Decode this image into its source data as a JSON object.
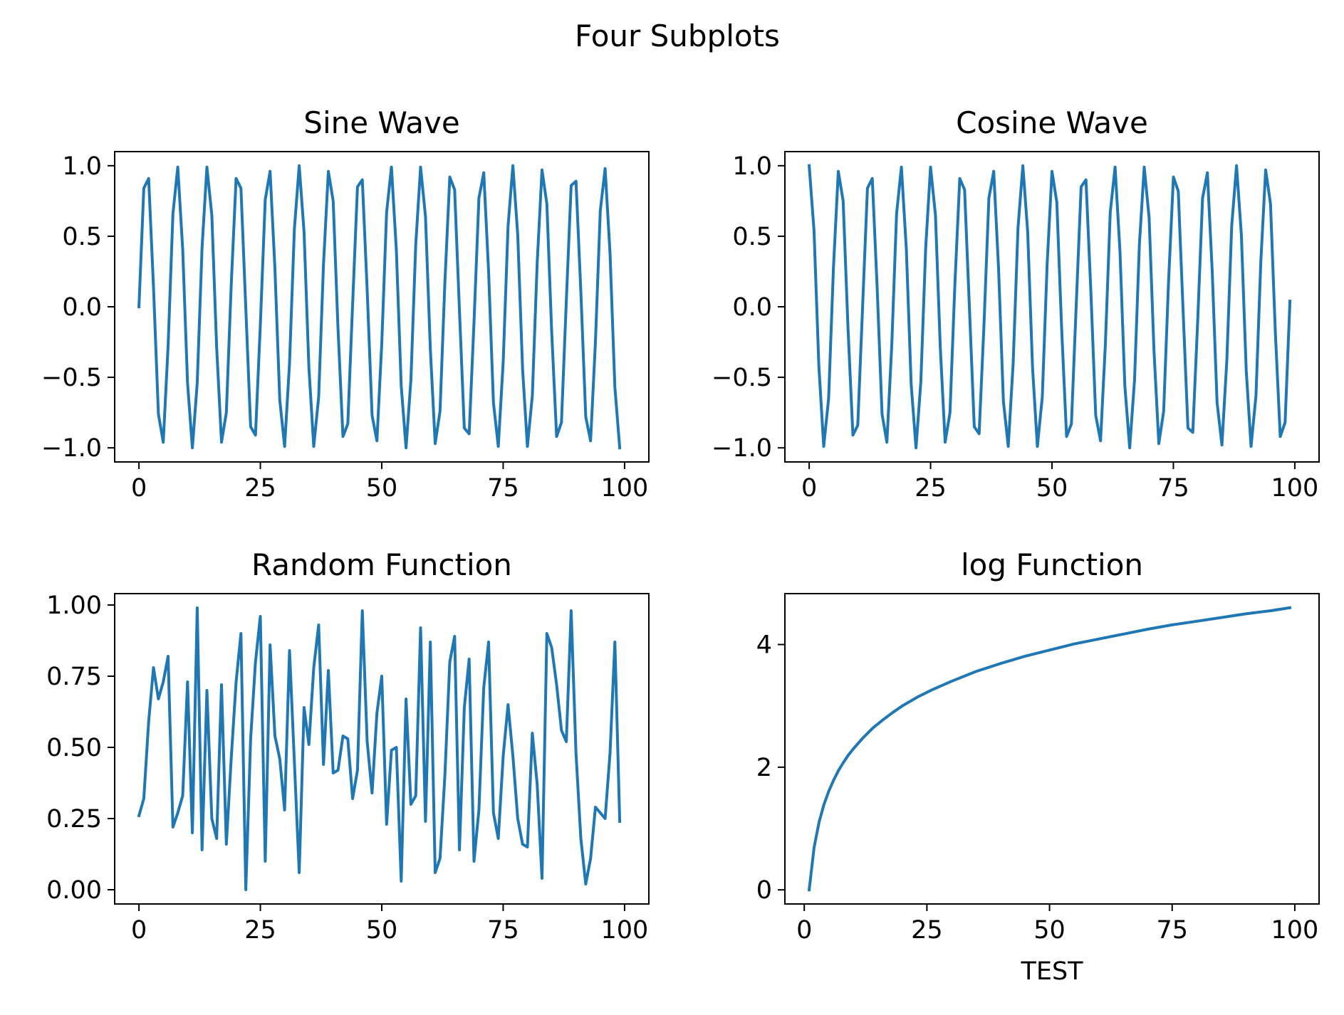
{
  "figure": {
    "suptitle": "Four Subplots"
  },
  "chart_data": [
    {
      "type": "line",
      "title": "Sine Wave",
      "xlabel": "",
      "ylabel": "",
      "xlim": [
        -5,
        105
      ],
      "ylim": [
        -1.1,
        1.1
      ],
      "xticks": [
        0,
        25,
        50,
        75,
        100
      ],
      "xtick_labels": [
        "0",
        "25",
        "50",
        "75",
        "100"
      ],
      "yticks": [
        1.0,
        0.5,
        0.0,
        -0.5,
        -1.0
      ],
      "ytick_labels": [
        "1.0",
        "0.5",
        "0.0",
        "−0.5",
        "−1.0"
      ],
      "grid": false,
      "series": [
        {
          "color": "#1f77b4",
          "x": [
            0,
            1,
            2,
            3,
            4,
            5,
            6,
            7,
            8,
            9,
            10,
            11,
            12,
            13,
            14,
            15,
            16,
            17,
            18,
            19,
            20,
            21,
            22,
            23,
            24,
            25,
            26,
            27,
            28,
            29,
            30,
            31,
            32,
            33,
            34,
            35,
            36,
            37,
            38,
            39,
            40,
            41,
            42,
            43,
            44,
            45,
            46,
            47,
            48,
            49,
            50,
            51,
            52,
            53,
            54,
            55,
            56,
            57,
            58,
            59,
            60,
            61,
            62,
            63,
            64,
            65,
            66,
            67,
            68,
            69,
            70,
            71,
            72,
            73,
            74,
            75,
            76,
            77,
            78,
            79,
            80,
            81,
            82,
            83,
            84,
            85,
            86,
            87,
            88,
            89,
            90,
            91,
            92,
            93,
            94,
            95,
            96,
            97,
            98,
            99
          ],
          "y": [
            0.0,
            0.84,
            0.91,
            0.14,
            -0.76,
            -0.96,
            -0.28,
            0.66,
            0.99,
            0.41,
            -0.54,
            -1.0,
            -0.54,
            0.42,
            0.99,
            0.65,
            -0.29,
            -0.96,
            -0.75,
            0.15,
            0.91,
            0.84,
            -0.01,
            -0.85,
            -0.91,
            -0.13,
            0.76,
            0.96,
            0.27,
            -0.66,
            -0.99,
            -0.4,
            0.55,
            1.0,
            0.53,
            -0.43,
            -0.99,
            -0.64,
            0.3,
            0.96,
            0.75,
            -0.16,
            -0.92,
            -0.83,
            0.02,
            0.85,
            0.9,
            0.12,
            -0.77,
            -0.95,
            -0.26,
            0.67,
            0.99,
            0.4,
            -0.56,
            -1.0,
            -0.52,
            0.44,
            0.99,
            0.64,
            -0.3,
            -0.97,
            -0.74,
            0.17,
            0.92,
            0.83,
            -0.03,
            -0.86,
            -0.9,
            -0.11,
            0.77,
            0.95,
            0.25,
            -0.68,
            -0.99,
            -0.39,
            0.57,
            1.0,
            0.51,
            -0.44,
            -0.99,
            -0.63,
            0.31,
            0.97,
            0.73,
            -0.18,
            -0.92,
            -0.82,
            0.04,
            0.86,
            0.89,
            0.11,
            -0.78,
            -0.95,
            -0.25,
            0.68,
            0.98,
            0.38,
            -0.57,
            -1.0
          ]
        }
      ]
    },
    {
      "type": "line",
      "title": "Cosine Wave",
      "xlabel": "",
      "ylabel": "",
      "xlim": [
        -5,
        105
      ],
      "ylim": [
        -1.1,
        1.1
      ],
      "xticks": [
        0,
        25,
        50,
        75,
        100
      ],
      "xtick_labels": [
        "0",
        "25",
        "50",
        "75",
        "100"
      ],
      "yticks": [
        1.0,
        0.5,
        0.0,
        -0.5,
        -1.0
      ],
      "ytick_labels": [
        "1.0",
        "0.5",
        "0.0",
        "−0.5",
        "−1.0"
      ],
      "grid": false,
      "series": [
        {
          "color": "#1f77b4",
          "x": [
            0,
            1,
            2,
            3,
            4,
            5,
            6,
            7,
            8,
            9,
            10,
            11,
            12,
            13,
            14,
            15,
            16,
            17,
            18,
            19,
            20,
            21,
            22,
            23,
            24,
            25,
            26,
            27,
            28,
            29,
            30,
            31,
            32,
            33,
            34,
            35,
            36,
            37,
            38,
            39,
            40,
            41,
            42,
            43,
            44,
            45,
            46,
            47,
            48,
            49,
            50,
            51,
            52,
            53,
            54,
            55,
            56,
            57,
            58,
            59,
            60,
            61,
            62,
            63,
            64,
            65,
            66,
            67,
            68,
            69,
            70,
            71,
            72,
            73,
            74,
            75,
            76,
            77,
            78,
            79,
            80,
            81,
            82,
            83,
            84,
            85,
            86,
            87,
            88,
            89,
            90,
            91,
            92,
            93,
            94,
            95,
            96,
            97,
            98,
            99
          ],
          "y": [
            1.0,
            0.54,
            -0.42,
            -0.99,
            -0.65,
            0.28,
            0.96,
            0.75,
            -0.15,
            -0.91,
            -0.84,
            0.0,
            0.84,
            0.91,
            0.14,
            -0.76,
            -0.96,
            -0.28,
            0.66,
            0.99,
            0.41,
            -0.55,
            -1.0,
            -0.53,
            0.42,
            0.99,
            0.65,
            -0.29,
            -0.96,
            -0.75,
            0.15,
            0.91,
            0.83,
            -0.01,
            -0.85,
            -0.9,
            -0.13,
            0.77,
            0.96,
            0.27,
            -0.67,
            -0.99,
            -0.4,
            0.56,
            1.0,
            0.53,
            -0.43,
            -0.99,
            -0.64,
            0.3,
            0.96,
            0.74,
            -0.16,
            -0.92,
            -0.83,
            0.02,
            0.85,
            0.9,
            0.12,
            -0.77,
            -0.95,
            -0.26,
            0.67,
            0.99,
            0.39,
            -0.56,
            -1.0,
            -0.52,
            0.44,
            0.99,
            0.63,
            -0.31,
            -0.97,
            -0.74,
            0.17,
            0.92,
            0.82,
            -0.03,
            -0.86,
            -0.89,
            -0.11,
            0.77,
            0.95,
            0.25,
            -0.68,
            -0.98,
            -0.38,
            0.57,
            1.0,
            0.51,
            -0.45,
            -0.99,
            -0.63,
            0.32,
            0.97,
            0.73,
            -0.18,
            -0.92,
            -0.82,
            0.04
          ]
        }
      ]
    },
    {
      "type": "line",
      "title": "Random Function",
      "xlabel": "",
      "ylabel": "",
      "xlim": [
        -5,
        105
      ],
      "ylim": [
        -0.05,
        1.04
      ],
      "xticks": [
        0,
        25,
        50,
        75,
        100
      ],
      "xtick_labels": [
        "0",
        "25",
        "50",
        "75",
        "100"
      ],
      "yticks": [
        1.0,
        0.75,
        0.5,
        0.25,
        0.0
      ],
      "ytick_labels": [
        "1.00",
        "0.75",
        "0.50",
        "0.25",
        "0.00"
      ],
      "grid": false,
      "series": [
        {
          "color": "#1f77b4",
          "x": [
            0,
            1,
            2,
            3,
            4,
            5,
            6,
            7,
            8,
            9,
            10,
            11,
            12,
            13,
            14,
            15,
            16,
            17,
            18,
            19,
            20,
            21,
            22,
            23,
            24,
            25,
            26,
            27,
            28,
            29,
            30,
            31,
            32,
            33,
            34,
            35,
            36,
            37,
            38,
            39,
            40,
            41,
            42,
            43,
            44,
            45,
            46,
            47,
            48,
            49,
            50,
            51,
            52,
            53,
            54,
            55,
            56,
            57,
            58,
            59,
            60,
            61,
            62,
            63,
            64,
            65,
            66,
            67,
            68,
            69,
            70,
            71,
            72,
            73,
            74,
            75,
            76,
            77,
            78,
            79,
            80,
            81,
            82,
            83,
            84,
            85,
            86,
            87,
            88,
            89,
            90,
            91,
            92,
            93,
            94,
            95,
            96,
            97,
            98,
            99
          ],
          "y": [
            0.26,
            0.32,
            0.59,
            0.78,
            0.67,
            0.73,
            0.82,
            0.22,
            0.27,
            0.33,
            0.73,
            0.2,
            0.99,
            0.14,
            0.7,
            0.25,
            0.18,
            0.72,
            0.16,
            0.46,
            0.73,
            0.9,
            0.0,
            0.53,
            0.8,
            0.96,
            0.1,
            0.86,
            0.54,
            0.46,
            0.28,
            0.84,
            0.45,
            0.06,
            0.64,
            0.51,
            0.78,
            0.93,
            0.44,
            0.77,
            0.41,
            0.42,
            0.54,
            0.53,
            0.32,
            0.42,
            0.98,
            0.52,
            0.34,
            0.62,
            0.75,
            0.23,
            0.49,
            0.5,
            0.03,
            0.67,
            0.3,
            0.33,
            0.92,
            0.24,
            0.87,
            0.06,
            0.11,
            0.4,
            0.8,
            0.89,
            0.14,
            0.64,
            0.81,
            0.1,
            0.28,
            0.71,
            0.87,
            0.27,
            0.18,
            0.47,
            0.65,
            0.47,
            0.25,
            0.16,
            0.15,
            0.55,
            0.37,
            0.04,
            0.9,
            0.85,
            0.72,
            0.56,
            0.52,
            0.98,
            0.48,
            0.18,
            0.02,
            0.11,
            0.29,
            0.27,
            0.25,
            0.48,
            0.87,
            0.24
          ]
        }
      ]
    },
    {
      "type": "line",
      "title": "log Function",
      "xlabel": "TEST",
      "ylabel": "",
      "xlim": [
        -3.95,
        104.95
      ],
      "ylim": [
        -0.23,
        4.83
      ],
      "xticks": [
        0,
        25,
        50,
        75,
        100
      ],
      "xtick_labels": [
        "0",
        "25",
        "50",
        "75",
        "100"
      ],
      "yticks": [
        4,
        2,
        0
      ],
      "ytick_labels": [
        "4",
        "2",
        "0"
      ],
      "grid": false,
      "series": [
        {
          "color": "#1f77b4",
          "x": [
            1,
            2,
            3,
            4,
            5,
            6,
            7,
            8,
            9,
            10,
            12,
            14,
            16,
            18,
            20,
            23,
            26,
            30,
            35,
            40,
            45,
            50,
            55,
            60,
            65,
            70,
            75,
            80,
            85,
            90,
            95,
            99
          ],
          "y": [
            0.0,
            0.69,
            1.1,
            1.39,
            1.61,
            1.79,
            1.95,
            2.08,
            2.2,
            2.3,
            2.48,
            2.64,
            2.77,
            2.89,
            3.0,
            3.14,
            3.26,
            3.4,
            3.56,
            3.69,
            3.81,
            3.91,
            4.01,
            4.09,
            4.17,
            4.25,
            4.32,
            4.38,
            4.44,
            4.5,
            4.55,
            4.6
          ]
        }
      ]
    }
  ]
}
